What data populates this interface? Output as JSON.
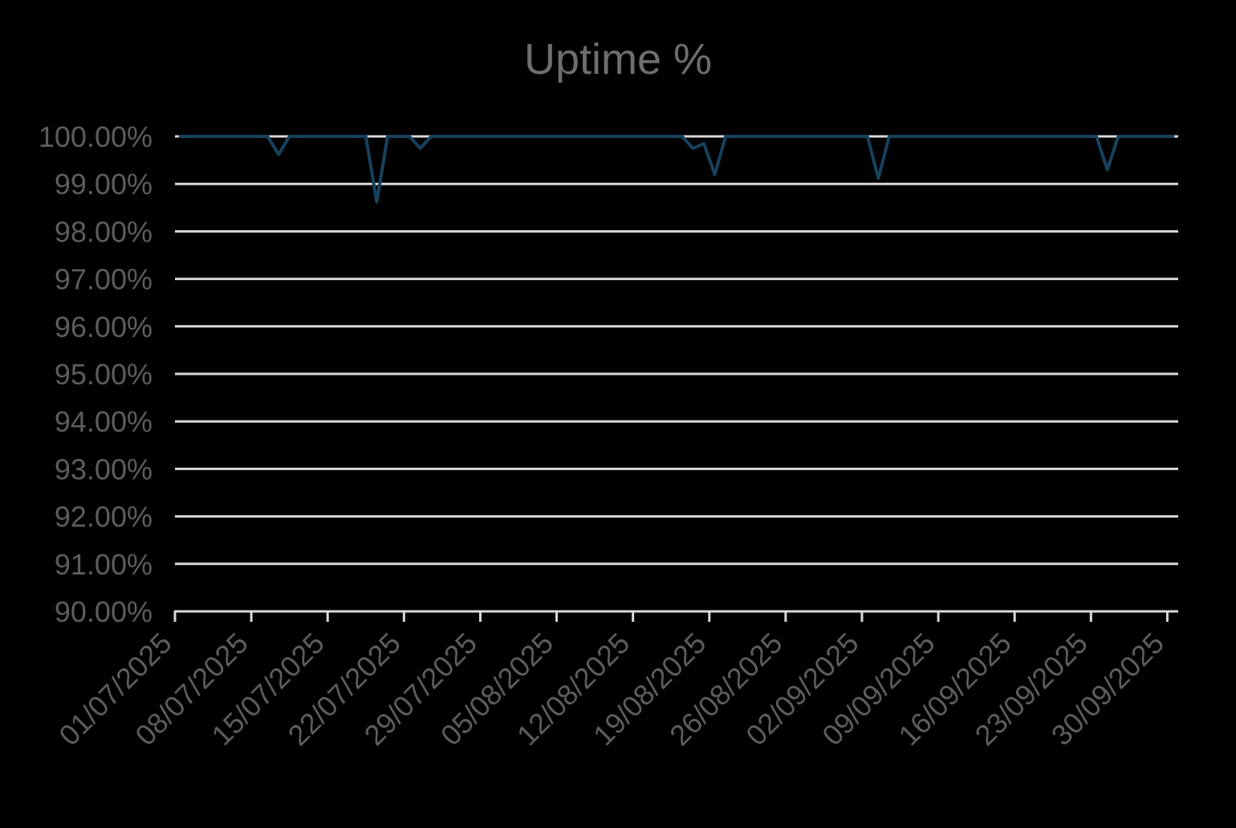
{
  "chart_data": {
    "type": "line",
    "title": "Uptime %",
    "xlabel": "",
    "ylabel": "",
    "ylim": [
      90,
      100
    ],
    "y_step": 1,
    "grid": "horizontal",
    "legend": "none",
    "y_tick_labels": [
      "100.00%",
      "99.00%",
      "98.00%",
      "97.00%",
      "96.00%",
      "95.00%",
      "94.00%",
      "93.00%",
      "92.00%",
      "91.00%",
      "90.00%"
    ],
    "x_tick_labels": [
      "01/07/2025",
      "08/07/2025",
      "15/07/2025",
      "22/07/2025",
      "29/07/2025",
      "05/08/2025",
      "12/08/2025",
      "19/08/2025",
      "26/08/2025",
      "02/09/2025",
      "09/09/2025",
      "16/09/2025",
      "23/09/2025",
      "30/09/2025"
    ],
    "x_frequency": "daily",
    "x_dates": [
      "01/07/2025",
      "02/07/2025",
      "03/07/2025",
      "04/07/2025",
      "05/07/2025",
      "06/07/2025",
      "07/07/2025",
      "08/07/2025",
      "09/07/2025",
      "10/07/2025",
      "11/07/2025",
      "12/07/2025",
      "13/07/2025",
      "14/07/2025",
      "15/07/2025",
      "16/07/2025",
      "17/07/2025",
      "18/07/2025",
      "19/07/2025",
      "20/07/2025",
      "21/07/2025",
      "22/07/2025",
      "23/07/2025",
      "24/07/2025",
      "25/07/2025",
      "26/07/2025",
      "27/07/2025",
      "28/07/2025",
      "29/07/2025",
      "30/07/2025",
      "31/07/2025",
      "01/08/2025",
      "02/08/2025",
      "03/08/2025",
      "04/08/2025",
      "05/08/2025",
      "06/08/2025",
      "07/08/2025",
      "08/08/2025",
      "09/08/2025",
      "10/08/2025",
      "11/08/2025",
      "12/08/2025",
      "13/08/2025",
      "14/08/2025",
      "15/08/2025",
      "16/08/2025",
      "17/08/2025",
      "18/08/2025",
      "19/08/2025",
      "20/08/2025",
      "21/08/2025",
      "22/08/2025",
      "23/08/2025",
      "24/08/2025",
      "25/08/2025",
      "26/08/2025",
      "27/08/2025",
      "28/08/2025",
      "29/08/2025",
      "30/08/2025",
      "31/08/2025",
      "01/09/2025",
      "02/09/2025",
      "03/09/2025",
      "04/09/2025",
      "05/09/2025",
      "06/09/2025",
      "07/09/2025",
      "08/09/2025",
      "09/09/2025",
      "10/09/2025",
      "11/09/2025",
      "12/09/2025",
      "13/09/2025",
      "14/09/2025",
      "15/09/2025",
      "16/09/2025",
      "17/09/2025",
      "18/09/2025",
      "19/09/2025",
      "20/09/2025",
      "21/09/2025",
      "22/09/2025",
      "23/09/2025",
      "24/09/2025",
      "25/09/2025",
      "26/09/2025",
      "27/09/2025",
      "28/09/2025",
      "29/09/2025",
      "30/09/2025"
    ],
    "series": [
      {
        "name": "Uptime %",
        "values": [
          100,
          100,
          100,
          100,
          100,
          100,
          100,
          100,
          100,
          99.62,
          100,
          100,
          100,
          100,
          100,
          100,
          100,
          100,
          98.62,
          100,
          100,
          100,
          99.75,
          100,
          100,
          100,
          100,
          100,
          100,
          100,
          100,
          100,
          100,
          100,
          100,
          100,
          100,
          100,
          100,
          100,
          100,
          100,
          100,
          100,
          100,
          100,
          100,
          99.75,
          99.85,
          99.2,
          100,
          100,
          100,
          100,
          100,
          100,
          100,
          100,
          100,
          100,
          100,
          100,
          100,
          100,
          99.12,
          100,
          100,
          100,
          100,
          100,
          100,
          100,
          100,
          100,
          100,
          100,
          100,
          100,
          100,
          100,
          100,
          100,
          100,
          100,
          100,
          99.3,
          100,
          100,
          100,
          100,
          100,
          100
        ]
      }
    ],
    "colors": {
      "background": "#000000",
      "line": "#16425e",
      "gridline": "#d9d9d9",
      "axis": "#d9d9d9",
      "tick_label": "#5d5d5d",
      "title": "#6e6e6e"
    }
  }
}
